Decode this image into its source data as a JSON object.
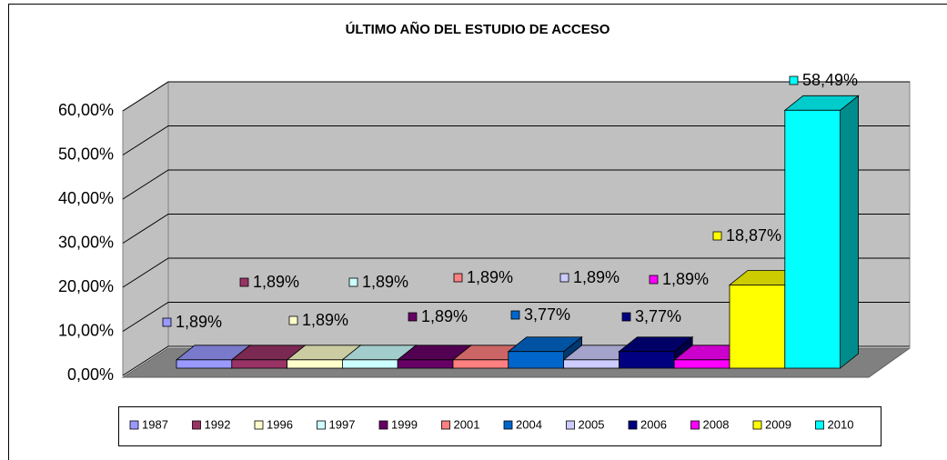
{
  "chart_data": {
    "type": "bar3d",
    "title": "ÚLTIMO AÑO DEL ESTUDIO DE ACCESO",
    "categories": [
      "1987",
      "1992",
      "1996",
      "1997",
      "1999",
      "2001",
      "2004",
      "2005",
      "2006",
      "2008",
      "2009",
      "2010"
    ],
    "values": [
      1.89,
      1.89,
      1.89,
      1.89,
      1.89,
      1.89,
      3.77,
      1.89,
      3.77,
      1.89,
      18.87,
      58.49
    ],
    "value_labels": [
      "1,89%",
      "1,89%",
      "1,89%",
      "1,89%",
      "1,89%",
      "1,89%",
      "3,77%",
      "1,89%",
      "3,77%",
      "1,89%",
      "18,87%",
      "58,49%"
    ],
    "colors": [
      "#9999ff",
      "#993366",
      "#ffffcc",
      "#ccffff",
      "#660066",
      "#ff8080",
      "#0066cc",
      "#ccccff",
      "#000080",
      "#ff00ff",
      "#ffff00",
      "#00ffff"
    ],
    "ylim": [
      0,
      60
    ],
    "yticks": [
      {
        "value": 0,
        "label": "0,00%"
      },
      {
        "value": 10,
        "label": "10,00%"
      },
      {
        "value": 20,
        "label": "20,00%"
      },
      {
        "value": 30,
        "label": "30,00%"
      },
      {
        "value": 40,
        "label": "40,00%"
      },
      {
        "value": 50,
        "label": "50,00%"
      },
      {
        "value": 60,
        "label": "60,00%"
      }
    ],
    "grid": true,
    "legend": "bottom"
  }
}
